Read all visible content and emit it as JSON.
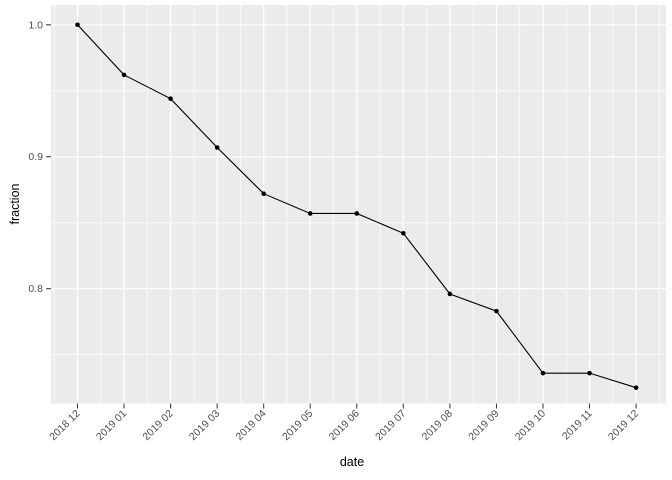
{
  "chart_data": {
    "type": "line",
    "title": "",
    "xlabel": "date",
    "ylabel": "fraction",
    "categories": [
      "2018 12",
      "2019 01",
      "2019 02",
      "2019 03",
      "2019 04",
      "2019 05",
      "2019 06",
      "2019 07",
      "2019 08",
      "2019 09",
      "2019 10",
      "2019 11",
      "2019 12"
    ],
    "values": [
      1.0,
      0.962,
      0.944,
      0.907,
      0.872,
      0.857,
      0.857,
      0.842,
      0.796,
      0.783,
      0.736,
      0.736,
      0.725
    ],
    "ylim": [
      0.713,
      1.015
    ],
    "yticks_major": [
      1.0,
      0.9,
      0.8
    ],
    "ytick_labels": [
      "1.0",
      "0.9",
      "0.8"
    ],
    "yticks_minor": [
      0.95,
      0.85,
      0.75
    ],
    "x_minor_offset": 0.5,
    "grid": true,
    "legend_position": "none",
    "x_label_angle": -45,
    "marker": "circle"
  },
  "style": {
    "figure_background": "#ffffff",
    "panel_background": "#ebebeb",
    "grid_major_color": "#ffffff",
    "grid_minor_color": "#ffffff",
    "axis_text_color": "#4d4d4d",
    "axis_title_color": "#000000",
    "tick_color": "#333333",
    "line_color": "#000000",
    "point_color": "#000000"
  }
}
